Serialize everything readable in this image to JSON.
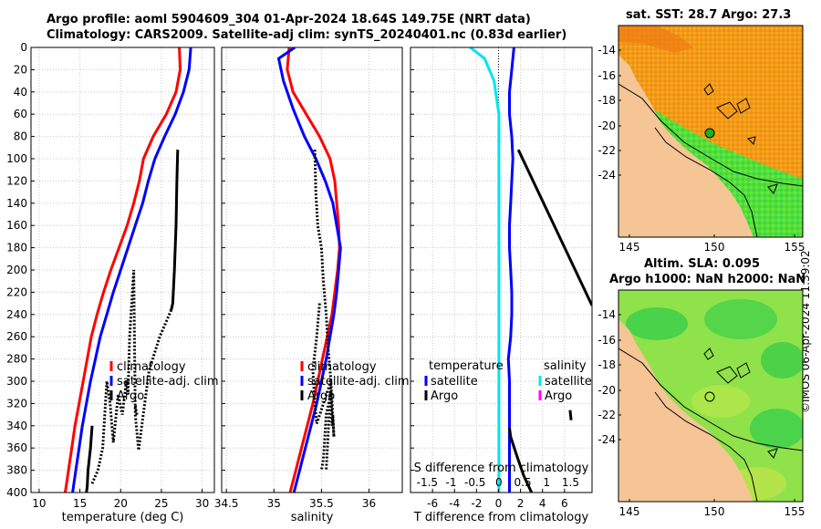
{
  "figure": {
    "title_line1": "Argo profile: aoml 5904609_304 01-Apr-2024 18.64S 149.75E (NRT data)",
    "title_line2": "Climatology: CARS2009. Satellite-adj clim: synTS_20240401.nc (0.83d earlier)",
    "credit": "©IMOS 06-Apr-2024 11:39:02"
  },
  "colors": {
    "climatology": "#ff0000",
    "satellite": "#0000ff",
    "argo": "#000000",
    "sal_satellite": "#00e5ee",
    "sal_argo": "#ff00ff",
    "ocean_warm": "#f4a11a",
    "ocean_green": "#3ddc3d",
    "land": "#f5c596"
  },
  "chart_data": [
    {
      "id": "temperature",
      "type": "line",
      "xlabel": "temperature (deg C)",
      "ylabel": "depth",
      "xlim": [
        9,
        31.5
      ],
      "ylim": [
        400,
        0
      ],
      "xticks": [
        10,
        15,
        20,
        25,
        30
      ],
      "yticks": [
        0,
        20,
        40,
        60,
        80,
        100,
        120,
        140,
        160,
        180,
        200,
        220,
        240,
        260,
        280,
        300,
        320,
        340,
        360,
        380,
        400
      ],
      "grid": true,
      "legend": [
        "climatology",
        "satellite-adj. clim",
        "Argo"
      ],
      "legend_position": "lower-center",
      "series": [
        {
          "name": "climatology",
          "color": "#ff0000",
          "style": "solid",
          "x": [
            27.2,
            27.3,
            26.8,
            25.6,
            24.0,
            22.8,
            22.3,
            21.6,
            20.8,
            19.8,
            18.8,
            17.9,
            17.1,
            16.4,
            15.9,
            15.4,
            14.9,
            14.4,
            14.0,
            13.6,
            13.2
          ],
          "y": [
            0,
            20,
            40,
            60,
            80,
            100,
            120,
            140,
            160,
            180,
            200,
            220,
            240,
            260,
            280,
            300,
            320,
            340,
            360,
            380,
            400
          ]
        },
        {
          "name": "satellite-adj. clim",
          "color": "#0000ff",
          "style": "solid",
          "x": [
            28.6,
            28.4,
            27.7,
            26.7,
            25.4,
            24.2,
            23.4,
            22.7,
            21.8,
            20.9,
            20.0,
            19.1,
            18.3,
            17.5,
            16.9,
            16.3,
            15.8,
            15.3,
            14.9,
            14.5,
            14.1
          ],
          "y": [
            0,
            20,
            40,
            60,
            80,
            100,
            120,
            140,
            160,
            180,
            200,
            220,
            240,
            260,
            280,
            300,
            320,
            340,
            360,
            380,
            400
          ]
        },
        {
          "name": "Argo",
          "color": "#000000",
          "style": "solid",
          "x": [
            27.0,
            26.9,
            26.8,
            26.6,
            26.4,
            26.2
          ],
          "y": [
            92,
            120,
            160,
            200,
            230,
            236
          ]
        },
        {
          "name": "Argo",
          "color": "#000000",
          "style": "dotted",
          "x": [
            26.2,
            24.8,
            23.5,
            22.2,
            21.8,
            21.6,
            21.1,
            20.9,
            20.7,
            20.2,
            19.7,
            19.1,
            18.7,
            18.3,
            17.8,
            17.2,
            16.5
          ],
          "y": [
            236,
            260,
            290,
            362,
            330,
            200,
            260,
            312,
            300,
            330,
            312,
            355,
            320,
            300,
            360,
            380,
            392
          ]
        },
        {
          "name": "Argo",
          "color": "#000000",
          "style": "dotted",
          "x": [
            21.8,
            22.0
          ],
          "y": [
            322,
            330
          ]
        },
        {
          "name": "Argo",
          "color": "#000000",
          "style": "solid",
          "x": [
            16.5,
            16.3,
            16.0,
            15.9,
            15.8
          ],
          "y": [
            340,
            360,
            380,
            395,
            400
          ]
        }
      ]
    },
    {
      "id": "salinity",
      "type": "line",
      "xlabel": "salinity",
      "ylabel": "",
      "xlim": [
        34.45,
        36.35
      ],
      "ylim": [
        400,
        0
      ],
      "xticks": [
        34.5,
        35,
        35.5,
        36
      ],
      "xtick_labels": [
        "34.5",
        "35",
        "35.5",
        "36"
      ],
      "yticks": [
        0,
        20,
        40,
        60,
        80,
        100,
        120,
        140,
        160,
        180,
        200,
        220,
        240,
        260,
        280,
        300,
        320,
        340,
        360,
        380,
        400
      ],
      "grid": true,
      "legend": [
        "climatology",
        "satellite-adj. clim",
        "Argo"
      ],
      "legend_position": "lower-center",
      "series": [
        {
          "name": "climatology",
          "color": "#ff0000",
          "style": "solid",
          "x": [
            35.16,
            35.14,
            35.2,
            35.34,
            35.48,
            35.59,
            35.64,
            35.66,
            35.68,
            35.69,
            35.67,
            35.64,
            35.61,
            35.56,
            35.51,
            35.46,
            35.41,
            35.35,
            35.29,
            35.23,
            35.17
          ],
          "y": [
            0,
            20,
            40,
            60,
            80,
            100,
            120,
            140,
            160,
            180,
            200,
            220,
            240,
            260,
            280,
            300,
            320,
            340,
            360,
            380,
            400
          ]
        },
        {
          "name": "satellite-adj. clim",
          "color": "#0000ff",
          "style": "solid",
          "x": [
            35.22,
            35.05,
            35.1,
            35.2,
            35.32,
            35.44,
            35.54,
            35.62,
            35.66,
            35.7,
            35.68,
            35.66,
            35.63,
            35.59,
            35.55,
            35.5,
            35.45,
            35.39,
            35.33,
            35.27,
            35.21
          ],
          "y": [
            0,
            10,
            30,
            55,
            80,
            100,
            120,
            140,
            160,
            180,
            200,
            220,
            240,
            260,
            280,
            300,
            320,
            340,
            360,
            380,
            400
          ]
        },
        {
          "name": "Argo",
          "color": "#000000",
          "style": "dotted",
          "x": [
            35.43,
            35.44,
            35.46,
            35.5,
            35.52,
            35.55,
            35.57,
            35.6,
            35.63,
            35.62,
            35.61,
            35.6,
            35.55,
            35.52,
            35.5
          ],
          "y": [
            92,
            130,
            160,
            180,
            210,
            240,
            270,
            300,
            350,
            330,
            340,
            310,
            330,
            370,
            380
          ]
        },
        {
          "name": "Argo",
          "color": "#000000",
          "style": "dotted",
          "x": [
            35.48,
            35.45,
            35.41,
            35.43,
            35.45,
            35.6,
            35.55
          ],
          "y": [
            230,
            260,
            290,
            320,
            338,
            300,
            380
          ]
        }
      ]
    },
    {
      "id": "differences",
      "type": "line",
      "xlabel": "T difference from climatology",
      "x2label": "S difference from climatology",
      "ylabel": "",
      "xlim": [
        -8,
        8.5
      ],
      "x2lim": [
        -1.85,
        1.95
      ],
      "ylim": [
        400,
        0
      ],
      "xticks": [
        -6,
        -4,
        -2,
        0,
        2,
        4,
        6
      ],
      "x2ticks": [
        -1.5,
        -1,
        -0.5,
        0,
        0.5,
        1,
        1.5
      ],
      "yticks": [
        0,
        20,
        40,
        60,
        80,
        100,
        120,
        140,
        160,
        180,
        200,
        220,
        240,
        260,
        280,
        300,
        320,
        340,
        360,
        380,
        400
      ],
      "grid": true,
      "legend_temperature_title": "temperature",
      "legend_salinity_title": "salinity",
      "legend": [
        "satellite",
        "Argo"
      ],
      "legend_position": "lower-center",
      "series": [
        {
          "name": "temperature satellite",
          "color": "#0000ff",
          "style": "solid",
          "x": [
            1.4,
            1.2,
            1.0,
            1.0,
            1.2,
            1.3,
            1.2,
            1.1,
            1.0,
            1.0,
            1.1,
            1.2,
            1.2,
            1.1,
            0.9,
            1.0,
            1.0,
            1.0,
            1.0,
            1.0,
            1.0
          ],
          "y": [
            0,
            20,
            40,
            60,
            80,
            100,
            120,
            140,
            160,
            180,
            200,
            220,
            240,
            260,
            280,
            300,
            320,
            340,
            360,
            380,
            400
          ]
        },
        {
          "name": "salinity satellite",
          "color": "#00e5ee",
          "style": "solid",
          "x": [
            -0.6,
            -0.3,
            -0.1,
            0.0,
            0.0,
            0.0,
            0.0,
            0.0,
            0.0,
            0.0,
            0.0,
            0.0,
            0.0,
            0.0,
            0.0,
            0.0,
            0.0,
            0.0,
            0.0,
            0.0,
            0.0
          ],
          "y": [
            0,
            10,
            30,
            60,
            80,
            100,
            120,
            140,
            160,
            180,
            200,
            220,
            240,
            260,
            280,
            300,
            320,
            340,
            360,
            380,
            400
          ]
        },
        {
          "name": "temperature Argo",
          "color": "#000000",
          "style": "solid",
          "x": [
            1.8,
            8.5
          ],
          "y": [
            92,
            232
          ]
        },
        {
          "name": "temperature Argo",
          "color": "#000000",
          "style": "solid",
          "x": [
            6.5,
            6.6
          ],
          "y": [
            326,
            335
          ]
        },
        {
          "name": "temperature Argo",
          "color": "#000000",
          "style": "solid",
          "x": [
            1.0,
            1.1,
            1.7,
            2.3,
            3.0
          ],
          "y": [
            342,
            350,
            368,
            385,
            400
          ]
        }
      ]
    }
  ],
  "maps": [
    {
      "id": "sst-map",
      "title": "sat. SST: 28.7 Argo: 27.3",
      "subtitle": "",
      "xticks": [
        "145",
        "150",
        "155"
      ],
      "yticks": [
        "-14",
        "-16",
        "-18",
        "-20",
        "-22",
        "-24"
      ],
      "marker": "Argo float position"
    },
    {
      "id": "sla-map",
      "title": "Altim. SLA: 0.095",
      "subtitle": "Argo h1000: NaN h2000: NaN",
      "xticks": [
        "145",
        "150",
        "155"
      ],
      "yticks": [
        "-14",
        "-16",
        "-18",
        "-20",
        "-22",
        "-24"
      ],
      "marker": "Argo float position"
    }
  ]
}
